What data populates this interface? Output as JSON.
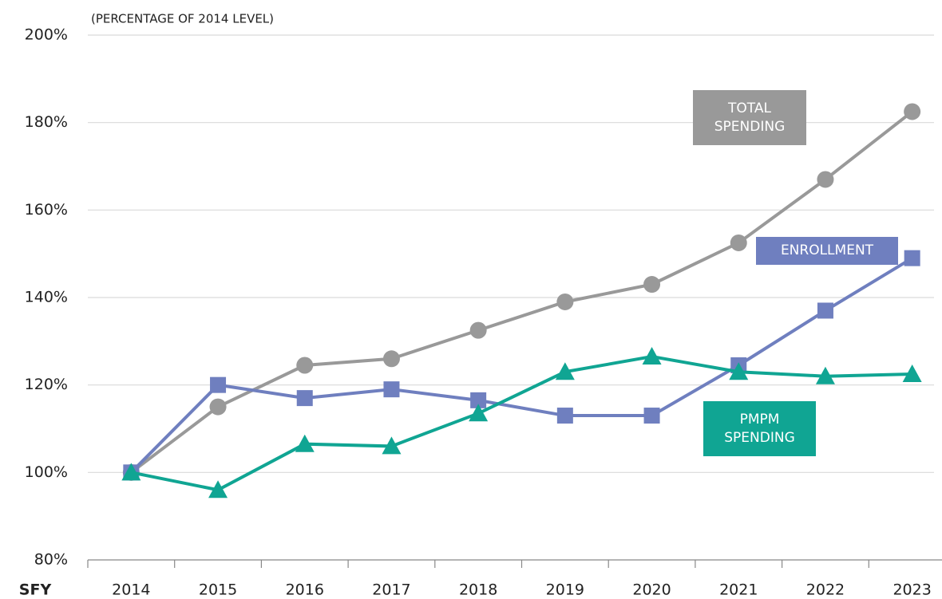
{
  "chart_data": {
    "type": "line",
    "subtitle": "(PERCENTAGE OF 2014 LEVEL)",
    "x_label": "SFY",
    "categories": [
      "2014",
      "2015",
      "2016",
      "2017",
      "2018",
      "2019",
      "2020",
      "2021",
      "2022",
      "2023"
    ],
    "series": [
      {
        "name": "TOTAL SPENDING",
        "color": "#999999",
        "marker": "circle",
        "values": [
          100,
          115,
          124.5,
          126,
          132.5,
          139,
          143,
          152.5,
          167,
          182.5
        ]
      },
      {
        "name": "ENROLLMENT",
        "color": "#6f7fbf",
        "marker": "square",
        "values": [
          100,
          120,
          117,
          119,
          116.5,
          113,
          113,
          124.5,
          137,
          149
        ]
      },
      {
        "name": "PMPM SPENDING",
        "color": "#10a593",
        "marker": "triangle",
        "values": [
          100,
          96,
          106.5,
          106,
          113.5,
          123,
          126.5,
          123,
          122,
          122.5
        ]
      }
    ],
    "ylim": [
      80,
      200
    ],
    "yticks": [
      {
        "value": 80,
        "label": "80%"
      },
      {
        "value": 100,
        "label": "100%"
      },
      {
        "value": 120,
        "label": "120%"
      },
      {
        "value": 140,
        "label": "140%"
      },
      {
        "value": 160,
        "label": "160%"
      },
      {
        "value": 180,
        "label": "180%"
      },
      {
        "value": 200,
        "label": "200%"
      }
    ],
    "grid": true
  }
}
